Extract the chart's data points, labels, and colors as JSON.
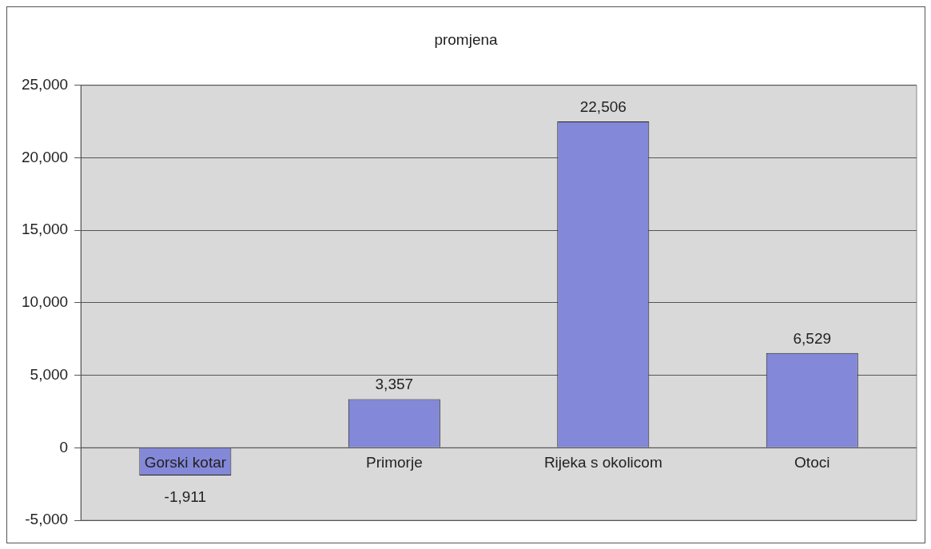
{
  "chart_data": {
    "type": "bar",
    "title": "promjena",
    "categories": [
      "Gorski kotar",
      "Primorje",
      "Rijeka s okolicom",
      "Otoci"
    ],
    "values": [
      -1911,
      3357,
      22506,
      6529
    ],
    "value_labels": [
      "-1,911",
      "3,357",
      "22,506",
      "6,529"
    ],
    "color": "#8488d8",
    "ylim": [
      -5000,
      25000
    ],
    "yticks": [
      {
        "value": -5000,
        "label": "-5,000"
      },
      0,
      {
        "value": 5000,
        "label": "5,000"
      },
      {
        "value": 10000,
        "label": "10,000"
      },
      {
        "value": 15000,
        "label": "15,000"
      },
      {
        "value": 20000,
        "label": "20,000"
      },
      {
        "value": 25000,
        "label": "25,000"
      }
    ],
    "grid": "y",
    "legend": false
  }
}
